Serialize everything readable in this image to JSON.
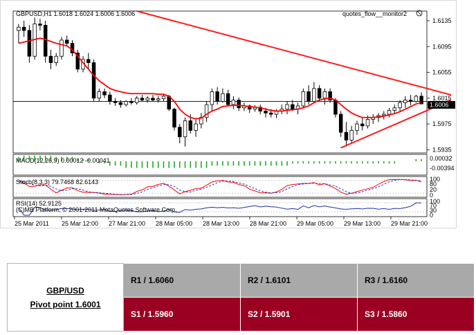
{
  "header": {
    "symbol_info": "GBPUSD,H1  1.6018 1.6024 1.6006 1.6006",
    "indicator_name": "quotes_flow__monitor2"
  },
  "current_price": "1.6006",
  "chart_data": {
    "type": "candlestick",
    "symbol": "GBPUSD",
    "timeframe": "H1",
    "ohlc": {
      "open": 1.6018,
      "high": 1.6024,
      "low": 1.6006,
      "close": 1.6006
    },
    "price_axis": {
      "ticks": [
        "1.6135",
        "1.6095",
        "1.6055",
        "1.6015",
        "1.5975",
        "1.5935"
      ],
      "ylim": [
        1.593,
        1.615
      ]
    },
    "time_axis": {
      "ticks": [
        "25 Mar 2011",
        "25 Mar 12:00",
        "27 Mar 21:00",
        "28 Mar 05:00",
        "28 Mar 13:00",
        "28 Mar 21:00",
        "29 Mar 05:00",
        "29 Mar 13:00",
        "29 Mar 21:00"
      ]
    },
    "candles": [
      {
        "o": 1.612,
        "h": 1.613,
        "l": 1.61,
        "c": 1.6125
      },
      {
        "o": 1.6125,
        "h": 1.6135,
        "l": 1.611,
        "c": 1.612
      },
      {
        "o": 1.612,
        "h": 1.6128,
        "l": 1.607,
        "c": 1.608
      },
      {
        "o": 1.608,
        "h": 1.614,
        "l": 1.6075,
        "c": 1.613
      },
      {
        "o": 1.613,
        "h": 1.6138,
        "l": 1.612,
        "c": 1.6128
      },
      {
        "o": 1.6128,
        "h": 1.6135,
        "l": 1.607,
        "c": 1.608
      },
      {
        "o": 1.608,
        "h": 1.609,
        "l": 1.606,
        "c": 1.607
      },
      {
        "o": 1.607,
        "h": 1.6085,
        "l": 1.6065,
        "c": 1.608
      },
      {
        "o": 1.608,
        "h": 1.611,
        "l": 1.6075,
        "c": 1.6105
      },
      {
        "o": 1.6105,
        "h": 1.6112,
        "l": 1.6095,
        "c": 1.61
      },
      {
        "o": 1.61,
        "h": 1.6105,
        "l": 1.608,
        "c": 1.6085
      },
      {
        "o": 1.6085,
        "h": 1.609,
        "l": 1.6055,
        "c": 1.606
      },
      {
        "o": 1.606,
        "h": 1.608,
        "l": 1.6055,
        "c": 1.6075
      },
      {
        "o": 1.6075,
        "h": 1.6085,
        "l": 1.606,
        "c": 1.607
      },
      {
        "o": 1.607,
        "h": 1.6075,
        "l": 1.601,
        "c": 1.6015
      },
      {
        "o": 1.6015,
        "h": 1.603,
        "l": 1.601,
        "c": 1.6025
      },
      {
        "o": 1.6025,
        "h": 1.603,
        "l": 1.6015,
        "c": 1.602
      },
      {
        "o": 1.602,
        "h": 1.6025,
        "l": 1.6005,
        "c": 1.601
      },
      {
        "o": 1.601,
        "h": 1.6015,
        "l": 1.6003,
        "c": 1.6008
      },
      {
        "o": 1.6008,
        "h": 1.6012,
        "l": 1.6,
        "c": 1.6005
      },
      {
        "o": 1.6005,
        "h": 1.6012,
        "l": 1.6002,
        "c": 1.601
      },
      {
        "o": 1.601,
        "h": 1.6015,
        "l": 1.6005,
        "c": 1.6008
      },
      {
        "o": 1.6008,
        "h": 1.6018,
        "l": 1.6005,
        "c": 1.6015
      },
      {
        "o": 1.6015,
        "h": 1.602,
        "l": 1.601,
        "c": 1.6012
      },
      {
        "o": 1.6012,
        "h": 1.6018,
        "l": 1.6008,
        "c": 1.6015
      },
      {
        "o": 1.6015,
        "h": 1.602,
        "l": 1.601,
        "c": 1.6012
      },
      {
        "o": 1.6012,
        "h": 1.6018,
        "l": 1.6008,
        "c": 1.6014
      },
      {
        "o": 1.6014,
        "h": 1.6022,
        "l": 1.601,
        "c": 1.6018
      },
      {
        "o": 1.6018,
        "h": 1.602,
        "l": 1.5995,
        "c": 1.5998
      },
      {
        "o": 1.5998,
        "h": 1.6,
        "l": 1.5965,
        "c": 1.597
      },
      {
        "o": 1.597,
        "h": 1.5975,
        "l": 1.5945,
        "c": 1.5955
      },
      {
        "o": 1.5955,
        "h": 1.5985,
        "l": 1.594,
        "c": 1.598
      },
      {
        "o": 1.598,
        "h": 1.599,
        "l": 1.596,
        "c": 1.5965
      },
      {
        "o": 1.5965,
        "h": 1.5982,
        "l": 1.5955,
        "c": 1.5975
      },
      {
        "o": 1.5975,
        "h": 1.5992,
        "l": 1.5968,
        "c": 1.5985
      },
      {
        "o": 1.5985,
        "h": 1.601,
        "l": 1.5978,
        "c": 1.6005
      },
      {
        "o": 1.6005,
        "h": 1.603,
        "l": 1.5995,
        "c": 1.6025
      },
      {
        "o": 1.6025,
        "h": 1.6032,
        "l": 1.6005,
        "c": 1.601
      },
      {
        "o": 1.601,
        "h": 1.603,
        "l": 1.6008,
        "c": 1.6022
      },
      {
        "o": 1.6022,
        "h": 1.6028,
        "l": 1.6002,
        "c": 1.6005
      },
      {
        "o": 1.6005,
        "h": 1.6018,
        "l": 1.5998,
        "c": 1.6012
      },
      {
        "o": 1.6012,
        "h": 1.6016,
        "l": 1.5995,
        "c": 1.6
      },
      {
        "o": 1.6,
        "h": 1.6008,
        "l": 1.5995,
        "c": 1.6003
      },
      {
        "o": 1.6003,
        "h": 1.6005,
        "l": 1.5992,
        "c": 1.5998
      },
      {
        "o": 1.5998,
        "h": 1.6004,
        "l": 1.5994,
        "c": 1.6001
      },
      {
        "o": 1.6001,
        "h": 1.6005,
        "l": 1.599,
        "c": 1.5995
      },
      {
        "o": 1.5995,
        "h": 1.6,
        "l": 1.5985,
        "c": 1.5992
      },
      {
        "o": 1.5992,
        "h": 1.5998,
        "l": 1.5985,
        "c": 1.599
      },
      {
        "o": 1.599,
        "h": 1.5998,
        "l": 1.5984,
        "c": 1.5995
      },
      {
        "o": 1.5995,
        "h": 1.6005,
        "l": 1.599,
        "c": 1.5998
      },
      {
        "o": 1.5998,
        "h": 1.601,
        "l": 1.599,
        "c": 1.6005
      },
      {
        "o": 1.6005,
        "h": 1.6012,
        "l": 1.5995,
        "c": 1.5998
      },
      {
        "o": 1.5998,
        "h": 1.6008,
        "l": 1.599,
        "c": 1.6003
      },
      {
        "o": 1.6003,
        "h": 1.603,
        "l": 1.6,
        "c": 1.6025
      },
      {
        "o": 1.6025,
        "h": 1.6035,
        "l": 1.6005,
        "c": 1.601
      },
      {
        "o": 1.601,
        "h": 1.604,
        "l": 1.6008,
        "c": 1.603
      },
      {
        "o": 1.603,
        "h": 1.6035,
        "l": 1.601,
        "c": 1.6015
      },
      {
        "o": 1.6015,
        "h": 1.603,
        "l": 1.6005,
        "c": 1.6025
      },
      {
        "o": 1.6025,
        "h": 1.603,
        "l": 1.6008,
        "c": 1.6012
      },
      {
        "o": 1.6012,
        "h": 1.6015,
        "l": 1.5985,
        "c": 1.599
      },
      {
        "o": 1.599,
        "h": 1.5995,
        "l": 1.5955,
        "c": 1.5962
      },
      {
        "o": 1.5962,
        "h": 1.5978,
        "l": 1.594,
        "c": 1.595
      },
      {
        "o": 1.595,
        "h": 1.5972,
        "l": 1.5945,
        "c": 1.5965
      },
      {
        "o": 1.5965,
        "h": 1.598,
        "l": 1.5958,
        "c": 1.5975
      },
      {
        "o": 1.5975,
        "h": 1.5985,
        "l": 1.5965,
        "c": 1.5972
      },
      {
        "o": 1.5972,
        "h": 1.5988,
        "l": 1.5968,
        "c": 1.5982
      },
      {
        "o": 1.5982,
        "h": 1.599,
        "l": 1.5975,
        "c": 1.5985
      },
      {
        "o": 1.5985,
        "h": 1.5992,
        "l": 1.5978,
        "c": 1.5988
      },
      {
        "o": 1.5988,
        "h": 1.5995,
        "l": 1.5982,
        "c": 1.599
      },
      {
        "o": 1.599,
        "h": 1.6,
        "l": 1.5985,
        "c": 1.5996
      },
      {
        "o": 1.5996,
        "h": 1.6005,
        "l": 1.599,
        "c": 1.6
      },
      {
        "o": 1.6,
        "h": 1.6012,
        "l": 1.5995,
        "c": 1.6008
      },
      {
        "o": 1.6008,
        "h": 1.6018,
        "l": 1.6,
        "c": 1.6012
      },
      {
        "o": 1.6012,
        "h": 1.602,
        "l": 1.6004,
        "c": 1.601
      },
      {
        "o": 1.601,
        "h": 1.602,
        "l": 1.6008,
        "c": 1.6018
      },
      {
        "o": 1.6018,
        "h": 1.6024,
        "l": 1.6006,
        "c": 1.6006
      }
    ],
    "moving_average": [
      1.61,
      1.6102,
      1.6104,
      1.6106,
      1.6108,
      1.6106,
      1.6103,
      1.61,
      1.6098,
      1.6096,
      1.609,
      1.608,
      1.607,
      1.606,
      1.605,
      1.6042,
      1.6036,
      1.603,
      1.6027,
      1.6025,
      1.6023,
      1.6022,
      1.6022,
      1.6022,
      1.6022,
      1.6022,
      1.6021,
      1.6021,
      1.6018,
      1.601,
      1.5998,
      1.599,
      1.5985,
      1.5983,
      1.5984,
      1.599,
      1.5995,
      1.5998,
      1.6002,
      1.6003,
      1.6004,
      1.6004,
      1.6003,
      1.6002,
      1.6001,
      1.6,
      1.5998,
      1.5996,
      1.5995,
      1.5995,
      1.5996,
      1.5997,
      1.5998,
      1.6,
      1.6003,
      1.6008,
      1.6012,
      1.6014,
      1.6015,
      1.6012,
      1.6005,
      1.5998,
      1.5992,
      1.5988,
      1.5985,
      1.5985,
      1.5985,
      1.5986,
      1.5987,
      1.5989,
      1.5991,
      1.5994,
      1.5998,
      1.6002,
      1.6006,
      1.6008
    ],
    "trend_lines": [
      {
        "name": "resistance",
        "from": {
          "i": 22,
          "p": 1.615
        },
        "to": {
          "i": 80,
          "p": 1.602
        }
      },
      {
        "name": "support",
        "from": {
          "i": 60,
          "p": 1.5938
        },
        "to": {
          "i": 80,
          "p": 1.6012
        }
      }
    ],
    "price_lines": [
      1.601
    ],
    "macd": {
      "label": "MACD(12,26,9) 0.00012 -0.00041",
      "ticks": [
        "0.00032",
        "-0.00394"
      ],
      "values": [
        0.0002,
        0.0003,
        0.0003,
        0.0004,
        0.0004,
        0.0004,
        0.0003,
        0.0002,
        0.0002,
        0.0002,
        0.0002,
        0.0001,
        0.0001,
        0.0001,
        0.0,
        -0.0001,
        -0.0001,
        -0.0002,
        -0.0002,
        -0.0002,
        -0.0003,
        -0.0003,
        -0.0003,
        -0.0003,
        -0.0003,
        -0.0003,
        -0.0003,
        -0.0003,
        -0.0003,
        -0.0003,
        -0.0003,
        -0.0003,
        -0.0003,
        -0.0003,
        -0.0003,
        -0.0003,
        -0.0002,
        -0.0002,
        -0.0002,
        -0.0002,
        -0.0002,
        -0.0002,
        -0.0002,
        -0.0002,
        -0.0002,
        -0.0002,
        -0.0002,
        -0.0002,
        -0.0002,
        -0.0002,
        -0.0002,
        -0.0001,
        -0.0001,
        -0.0001,
        -0.0001,
        -0.0001,
        -0.0001,
        -0.0001,
        -0.0001,
        -0.0001,
        -0.0001,
        -0.0001,
        -0.0001,
        -0.0001,
        -0.0001,
        -0.0001,
        -0.0001,
        -0.0001,
        -0.0001,
        -0.0001,
        -0.0001,
        0.0,
        0.0,
        0.0,
        0.0001,
        0.0001
      ]
    },
    "stochastic": {
      "label": "Stoch(8,3,3) 79.7468 82.6143",
      "ticks": [
        "100",
        "80",
        "20",
        "0"
      ]
    },
    "rsi": {
      "label": "RSI(14) 52.9125",
      "ticks": [
        "100",
        "70",
        "30",
        "0"
      ]
    },
    "copyright": "(C)MB Platform, © 2001-2011 MetaQuotes Software Corp."
  },
  "pivot": {
    "pair": "GBP/USD",
    "pivot_label": "Pivot point 1.6001",
    "r1": "R1 / 1.6060",
    "r2": "R2 / 1.6101",
    "r3": "R3 / 1.6160",
    "s1": "S1 / 1.5960",
    "s2": "S2 / 1.5901",
    "s3": "S3 / 1.5860"
  },
  "colors": {
    "bull": "#ffffff",
    "bear": "#000000",
    "trend": "#ff1a1a",
    "ma": "#ff0000",
    "macd": "#22aa22",
    "stoch_main": "#ff0000",
    "stoch_signal": "#2040c0",
    "rsi": "#1f2fa0",
    "support_row": "#9b0022",
    "resistance_row": "#a9a9a9"
  }
}
